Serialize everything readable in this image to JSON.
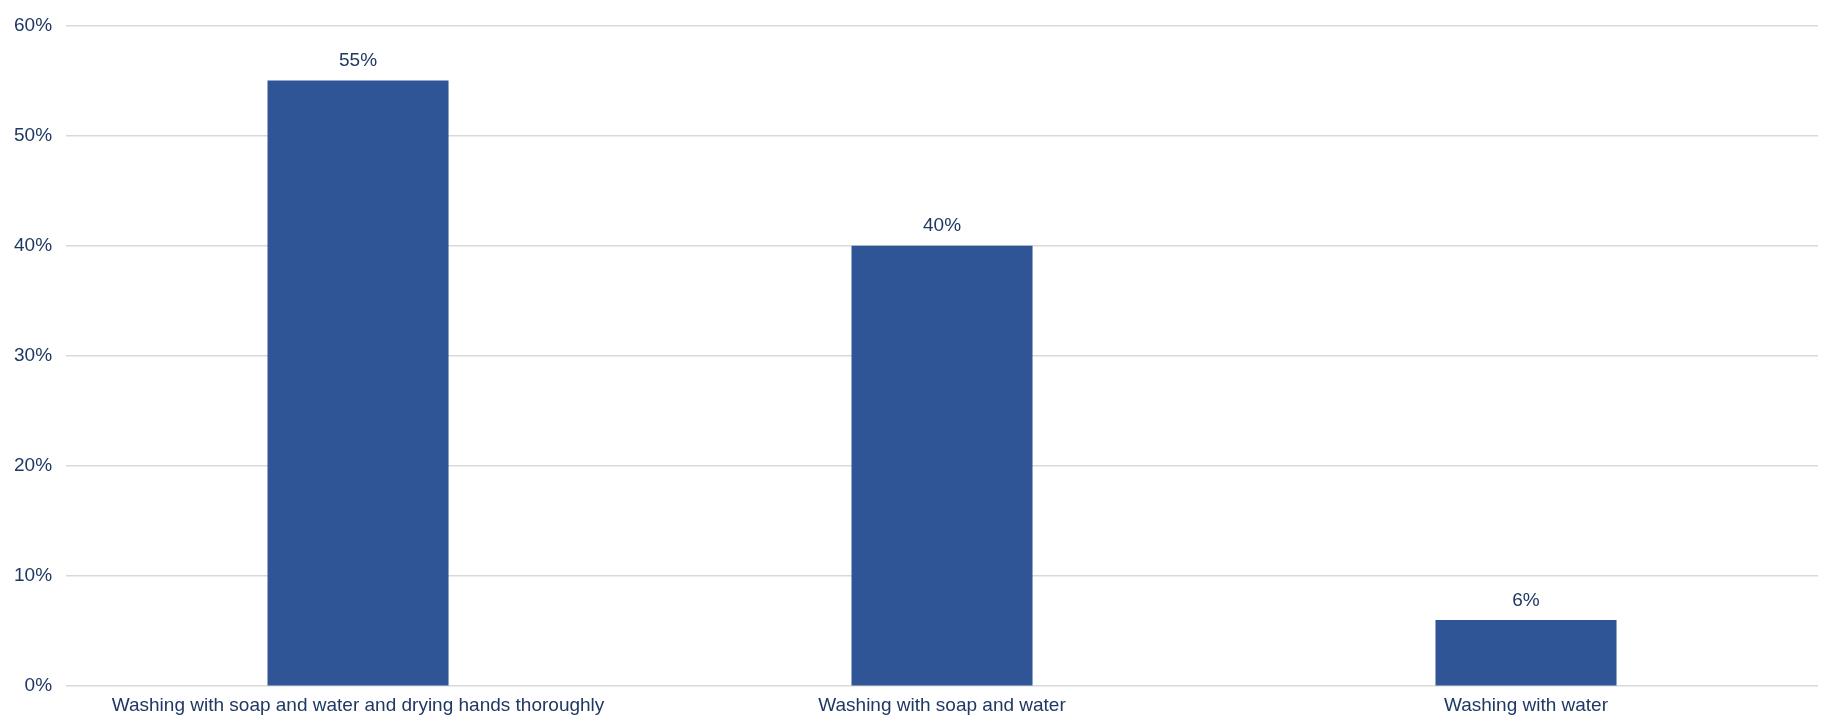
{
  "chart_data": {
    "type": "bar",
    "categories": [
      "Washing with soap and water and drying hands thoroughly",
      "Washing with soap and water",
      "Washing with water"
    ],
    "values": [
      55,
      40,
      6
    ],
    "color": "#2f5597",
    "value_labels": [
      "55%",
      "40%",
      "6%"
    ],
    "ylim": [
      0,
      60
    ],
    "yticks": [
      {
        "value": 0,
        "label": "0%"
      },
      {
        "value": 10,
        "label": "10%"
      },
      {
        "value": 20,
        "label": "20%"
      },
      {
        "value": 30,
        "label": "30%"
      },
      {
        "value": 40,
        "label": "40%"
      },
      {
        "value": 50,
        "label": "50%"
      },
      {
        "value": 60,
        "label": "60%"
      }
    ],
    "grid": "y",
    "legend": false
  }
}
